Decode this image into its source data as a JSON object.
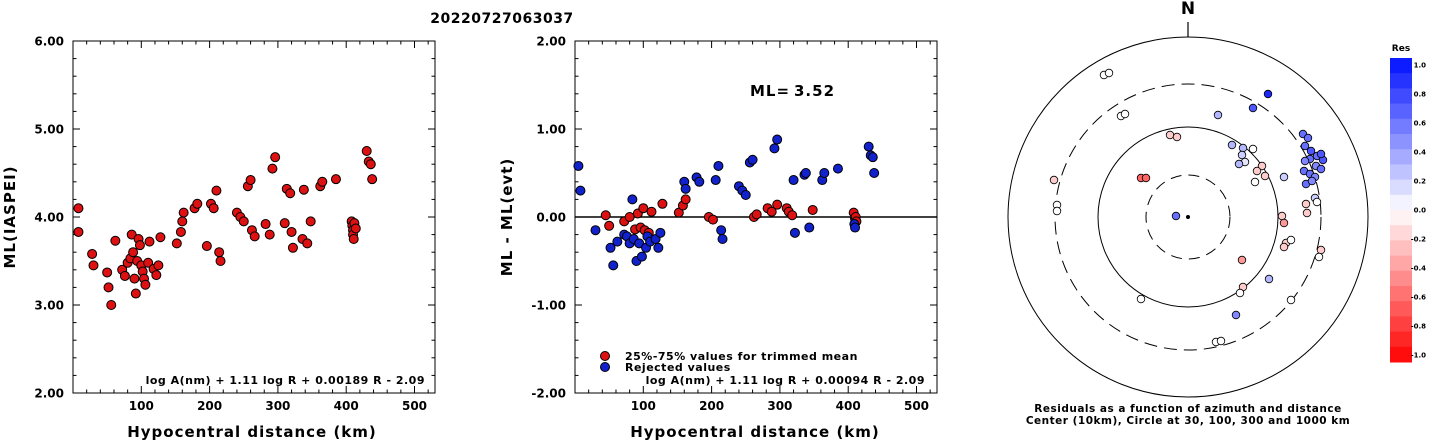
{
  "title": "20220727063037",
  "chart_data": [
    {
      "type": "scatter",
      "xlabel": "Hypocentral distance (km)",
      "ylabel": "ML(IASPEI)",
      "xlim": [
        0,
        530
      ],
      "ylim": [
        2.0,
        6.0
      ],
      "xticks": [
        "100",
        "200",
        "300",
        "400",
        "500"
      ],
      "yticks": [
        "2.00",
        "3.00",
        "4.00",
        "5.00",
        "6.00"
      ],
      "formula": "log A(nm) + 1.11 log R + 0.00189 R - 2.09",
      "color": "#dd1111",
      "points": [
        [
          8,
          4.1
        ],
        [
          8,
          3.83
        ],
        [
          28,
          3.58
        ],
        [
          30,
          3.45
        ],
        [
          50,
          3.37
        ],
        [
          52,
          3.2
        ],
        [
          56,
          3.0
        ],
        [
          62,
          3.73
        ],
        [
          72,
          3.4
        ],
        [
          76,
          3.33
        ],
        [
          80,
          3.48
        ],
        [
          84,
          3.53
        ],
        [
          86,
          3.8
        ],
        [
          88,
          3.6
        ],
        [
          90,
          3.3
        ],
        [
          92,
          3.13
        ],
        [
          94,
          3.5
        ],
        [
          96,
          3.75
        ],
        [
          98,
          3.68
        ],
        [
          100,
          3.45
        ],
        [
          102,
          3.38
        ],
        [
          104,
          3.3
        ],
        [
          106,
          3.23
        ],
        [
          110,
          3.48
        ],
        [
          112,
          3.72
        ],
        [
          118,
          3.41
        ],
        [
          122,
          3.34
        ],
        [
          125,
          3.45
        ],
        [
          128,
          3.77
        ],
        [
          152,
          3.7
        ],
        [
          158,
          3.83
        ],
        [
          160,
          3.95
        ],
        [
          162,
          4.05
        ],
        [
          178,
          4.1
        ],
        [
          182,
          4.15
        ],
        [
          196,
          3.67
        ],
        [
          202,
          4.15
        ],
        [
          206,
          4.1
        ],
        [
          210,
          4.3
        ],
        [
          214,
          3.6
        ],
        [
          216,
          3.5
        ],
        [
          240,
          4.05
        ],
        [
          245,
          4.0
        ],
        [
          250,
          3.95
        ],
        [
          256,
          4.35
        ],
        [
          260,
          4.42
        ],
        [
          262,
          3.85
        ],
        [
          266,
          3.78
        ],
        [
          282,
          3.92
        ],
        [
          288,
          3.8
        ],
        [
          292,
          4.55
        ],
        [
          296,
          4.68
        ],
        [
          310,
          3.93
        ],
        [
          313,
          4.32
        ],
        [
          318,
          4.27
        ],
        [
          320,
          3.83
        ],
        [
          322,
          3.65
        ],
        [
          336,
          3.75
        ],
        [
          338,
          4.31
        ],
        [
          343,
          3.7
        ],
        [
          348,
          3.95
        ],
        [
          362,
          4.35
        ],
        [
          365,
          4.4
        ],
        [
          385,
          4.43
        ],
        [
          408,
          3.95
        ],
        [
          409,
          3.9
        ],
        [
          410,
          3.85
        ],
        [
          410,
          3.8
        ],
        [
          411,
          3.75
        ],
        [
          412,
          3.93
        ],
        [
          414,
          3.87
        ],
        [
          430,
          4.75
        ],
        [
          433,
          4.63
        ],
        [
          436,
          4.6
        ],
        [
          438,
          4.43
        ]
      ]
    },
    {
      "type": "scatter",
      "xlabel": "Hypocentral distance (km)",
      "ylabel": "ML - ML(evt)",
      "xlim": [
        0,
        530
      ],
      "ylim": [
        -2.0,
        2.0
      ],
      "xticks": [
        "100",
        "200",
        "300",
        "400",
        "500"
      ],
      "yticks": [
        "-2.00",
        "-1.00",
        "0.00",
        "1.00",
        "2.00"
      ],
      "ml_label": "ML=",
      "ml_value": "3.52",
      "formula": "log A(nm) + 1.11 log R + 0.00094 R - 2.09",
      "series": [
        {
          "name": "25%-75% values for trimmed mean",
          "color": "#dd1111",
          "points": [
            [
              45,
              0.02
            ],
            [
              50,
              -0.1
            ],
            [
              72,
              -0.05
            ],
            [
              80,
              0.0
            ],
            [
              88,
              -0.14
            ],
            [
              92,
              0.04
            ],
            [
              96,
              -0.12
            ],
            [
              100,
              0.1
            ],
            [
              102,
              -0.15
            ],
            [
              108,
              -0.18
            ],
            [
              112,
              0.06
            ],
            [
              128,
              0.15
            ],
            [
              152,
              0.05
            ],
            [
              158,
              0.13
            ],
            [
              162,
              0.2
            ],
            [
              196,
              0.0
            ],
            [
              202,
              -0.03
            ],
            [
              262,
              0.0
            ],
            [
              266,
              0.03
            ],
            [
              282,
              0.1
            ],
            [
              288,
              0.06
            ],
            [
              296,
              0.14
            ],
            [
              310,
              0.1
            ],
            [
              313,
              0.06
            ],
            [
              318,
              0.02
            ],
            [
              348,
              0.08
            ],
            [
              408,
              0.05
            ],
            [
              410,
              -0.02
            ],
            [
              411,
              0.0
            ],
            [
              412,
              -0.05
            ]
          ]
        },
        {
          "name": "Rejected values",
          "color": "#1122cc",
          "points": [
            [
              5,
              0.58
            ],
            [
              8,
              0.3
            ],
            [
              30,
              -0.15
            ],
            [
              52,
              -0.35
            ],
            [
              56,
              -0.55
            ],
            [
              62,
              -0.28
            ],
            [
              72,
              -0.2
            ],
            [
              76,
              -0.22
            ],
            [
              80,
              -0.3
            ],
            [
              84,
              0.2
            ],
            [
              86,
              -0.25
            ],
            [
              90,
              -0.5
            ],
            [
              94,
              -0.3
            ],
            [
              98,
              -0.45
            ],
            [
              104,
              -0.35
            ],
            [
              106,
              -0.22
            ],
            [
              110,
              -0.28
            ],
            [
              118,
              -0.25
            ],
            [
              122,
              -0.35
            ],
            [
              125,
              -0.18
            ],
            [
              160,
              0.4
            ],
            [
              162,
              0.32
            ],
            [
              178,
              0.45
            ],
            [
              182,
              0.4
            ],
            [
              206,
              0.42
            ],
            [
              210,
              0.58
            ],
            [
              214,
              -0.15
            ],
            [
              216,
              -0.25
            ],
            [
              240,
              0.35
            ],
            [
              245,
              0.3
            ],
            [
              250,
              0.25
            ],
            [
              256,
              0.62
            ],
            [
              260,
              0.65
            ],
            [
              292,
              0.78
            ],
            [
              296,
              0.88
            ],
            [
              320,
              0.42
            ],
            [
              322,
              -0.18
            ],
            [
              336,
              0.48
            ],
            [
              338,
              0.5
            ],
            [
              343,
              -0.12
            ],
            [
              362,
              0.42
            ],
            [
              365,
              0.5
            ],
            [
              385,
              0.55
            ],
            [
              409,
              -0.08
            ],
            [
              410,
              -0.12
            ],
            [
              430,
              0.8
            ],
            [
              433,
              0.7
            ],
            [
              436,
              0.68
            ],
            [
              438,
              0.5
            ]
          ]
        }
      ]
    },
    {
      "type": "scatter",
      "subtype": "polar-residuals",
      "north_label": "N",
      "caption_line1": "Residuals as a function of azimuth and distance",
      "caption_line2": "Center (10km), Circle at 30, 100, 300 and 1000 km",
      "colorbar_title": "Res",
      "colorbar_ticks": [
        "1.0",
        "0.8",
        "0.6",
        "0.4",
        "0.2",
        "0.0",
        "-0.2",
        "-0.4",
        "-0.6",
        "-0.8",
        "-1.0"
      ],
      "epicenter_points": [
        {
          "dx": -12,
          "dy": -1,
          "res": 0.6
        }
      ],
      "points": [
        {
          "dx": -67,
          "dy": -101,
          "res": 0.0
        },
        {
          "dx": -63,
          "dy": -103,
          "res": 0.0
        },
        {
          "dx": -84,
          "dy": -142,
          "res": 0.0
        },
        {
          "dx": -79,
          "dy": -144,
          "res": 0.0
        },
        {
          "dx": -18,
          "dy": -82,
          "res": -0.2
        },
        {
          "dx": -11,
          "dy": -80,
          "res": -0.2
        },
        {
          "dx": -47,
          "dy": -39,
          "res": -0.6
        },
        {
          "dx": -42,
          "dy": -39,
          "res": -0.6
        },
        {
          "dx": 30,
          "dy": -102,
          "res": 0.3
        },
        {
          "dx": 80,
          "dy": -123,
          "res": 0.9
        },
        {
          "dx": 65,
          "dy": -109,
          "res": 0.7
        },
        {
          "dx": 44,
          "dy": -72,
          "res": 0.3
        },
        {
          "dx": 55,
          "dy": -69,
          "res": 0.3
        },
        {
          "dx": 65,
          "dy": -68,
          "res": 0.0
        },
        {
          "dx": 54,
          "dy": -62,
          "res": 0.2
        },
        {
          "dx": 57,
          "dy": -55,
          "res": 0.1
        },
        {
          "dx": 74,
          "dy": -51,
          "res": -0.2
        },
        {
          "dx": 69,
          "dy": -46,
          "res": -0.2
        },
        {
          "dx": 77,
          "dy": -41,
          "res": -0.2
        },
        {
          "dx": 67,
          "dy": -35,
          "res": 0.0
        },
        {
          "dx": 51,
          "dy": -53,
          "res": 0.3
        },
        {
          "dx": 96,
          "dy": -40,
          "res": 0.2
        },
        {
          "dx": 115,
          "dy": -83,
          "res": 0.6
        },
        {
          "dx": 120,
          "dy": -79,
          "res": 0.6
        },
        {
          "dx": 117,
          "dy": -71,
          "res": 0.6
        },
        {
          "dx": 123,
          "dy": -66,
          "res": 0.7
        },
        {
          "dx": 129,
          "dy": -61,
          "res": 0.6
        },
        {
          "dx": 135,
          "dy": -57,
          "res": 0.7
        },
        {
          "dx": 122,
          "dy": -58,
          "res": 0.6
        },
        {
          "dx": 133,
          "dy": -63,
          "res": 0.7
        },
        {
          "dx": 128,
          "dy": -51,
          "res": 0.5
        },
        {
          "dx": 117,
          "dy": -56,
          "res": 0.5
        },
        {
          "dx": 116,
          "dy": -46,
          "res": 0.6
        },
        {
          "dx": 122,
          "dy": -43,
          "res": 0.6
        },
        {
          "dx": 127,
          "dy": -40,
          "res": 0.5
        },
        {
          "dx": 133,
          "dy": -48,
          "res": 0.6
        },
        {
          "dx": 118,
          "dy": -33,
          "res": 0.6
        },
        {
          "dx": 124,
          "dy": -36,
          "res": 0.5
        },
        {
          "dx": 127,
          "dy": -19,
          "res": 0.2
        },
        {
          "dx": 118,
          "dy": -13,
          "res": -0.2
        },
        {
          "dx": 119,
          "dy": -4,
          "res": -0.2
        },
        {
          "dx": 129,
          "dy": -15,
          "res": 0.0
        },
        {
          "dx": -134,
          "dy": -37,
          "res": -0.2
        },
        {
          "dx": -131,
          "dy": -12,
          "res": 0.0
        },
        {
          "dx": -131,
          "dy": -6,
          "res": 0.0
        },
        {
          "dx": 94,
          "dy": -1,
          "res": -0.2
        },
        {
          "dx": 96,
          "dy": 6,
          "res": -0.4
        },
        {
          "dx": 98,
          "dy": 26,
          "res": -0.2
        },
        {
          "dx": 96,
          "dy": 30,
          "res": -0.2
        },
        {
          "dx": 103,
          "dy": 23,
          "res": 0.0
        },
        {
          "dx": 133,
          "dy": 33,
          "res": -0.2
        },
        {
          "dx": 131,
          "dy": 40,
          "res": 0.0
        },
        {
          "dx": 54,
          "dy": 43,
          "res": -0.4
        },
        {
          "dx": 81,
          "dy": 62,
          "res": 0.3
        },
        {
          "dx": 55,
          "dy": 70,
          "res": -0.2
        },
        {
          "dx": 52,
          "dy": 76,
          "res": 0.0
        },
        {
          "dx": 103,
          "dy": 83,
          "res": 0.0
        },
        {
          "dx": 48,
          "dy": 98,
          "res": 0.5
        },
        {
          "dx": -47,
          "dy": 82,
          "res": 0.0
        },
        {
          "dx": 28,
          "dy": 125,
          "res": 0.0
        },
        {
          "dx": 33,
          "dy": 124,
          "res": 0.0
        }
      ]
    }
  ]
}
